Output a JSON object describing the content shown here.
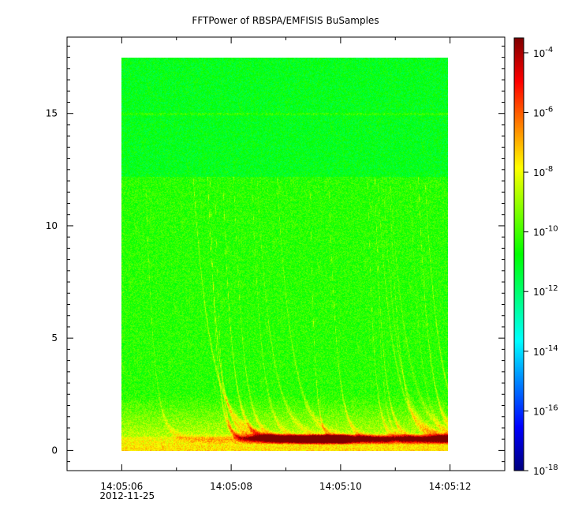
{
  "chart_data": {
    "type": "heatmap",
    "title": "FFTPower of RBSPA/EMFISIS  BuSamples",
    "xlabel": "",
    "ylabel": "",
    "x_axis": {
      "type": "time",
      "start_time": "14:05:05.0",
      "end_time": "14:05:13.0",
      "ticks": [
        {
          "label": "14:05:06",
          "sublabel": "2012-11-25",
          "value": "14:05:06"
        },
        {
          "label": "14:05:08",
          "value": "14:05:08"
        },
        {
          "label": "14:05:10",
          "value": "14:05:10"
        },
        {
          "label": "14:05:12",
          "value": "14:05:12"
        }
      ],
      "minor_tick_values": [
        "14:05:07",
        "14:05:09",
        "14:05:11",
        "14:05:13"
      ]
    },
    "y_axis": {
      "ylim": [
        -0.9,
        18.4
      ],
      "ticks": [
        0,
        5,
        10,
        15
      ],
      "tick_labels": [
        "0",
        "5",
        "10",
        "15"
      ],
      "minor_tick_values": [
        -0.5,
        0.5,
        1.0,
        1.5,
        2.0,
        2.5,
        3.0,
        3.5,
        4.0,
        4.5,
        5.5,
        6.0,
        6.5,
        7.0,
        7.5,
        8.0,
        8.5,
        9.0,
        9.5,
        10.5,
        11.0,
        11.5,
        12.0,
        12.5,
        13.0,
        13.5,
        14.0,
        14.5,
        15.5,
        16.0,
        16.5,
        17.0,
        17.5,
        18.0
      ]
    },
    "data_extent": {
      "x_start": "14:05:06.1",
      "x_end": "14:05:12.0",
      "y_min": 0,
      "y_max": 17.5
    },
    "colorbar": {
      "scale": "log",
      "range_log10": [
        -18,
        -3.5
      ],
      "ticks": [
        {
          "exp": -18,
          "label": "10",
          "sup": "-18"
        },
        {
          "exp": -16,
          "label": "10",
          "sup": "-16"
        },
        {
          "exp": -14,
          "label": "10",
          "sup": "-14"
        },
        {
          "exp": -12,
          "label": "10",
          "sup": "-12"
        },
        {
          "exp": -10,
          "label": "10",
          "sup": "-10"
        },
        {
          "exp": -8,
          "label": "10",
          "sup": "-8"
        },
        {
          "exp": -6,
          "label": "10",
          "sup": "-6"
        },
        {
          "exp": -4,
          "label": "10",
          "sup": "-4"
        }
      ],
      "colormap": [
        "#00007f",
        "#0000ff",
        "#007fff",
        "#00ffff",
        "#00ff7f",
        "#00ff00",
        "#7fff00",
        "#ffff00",
        "#ff7f00",
        "#ff0000",
        "#7f0000"
      ]
    },
    "features": {
      "background_low_band_log10": -10.3,
      "background_high_band_log10": -11.0,
      "band_boundary_y": 12.2,
      "line_at_y": 15.0,
      "whistler_traces_count": 22
    },
    "grid": false,
    "legend": "colorbar-right"
  }
}
